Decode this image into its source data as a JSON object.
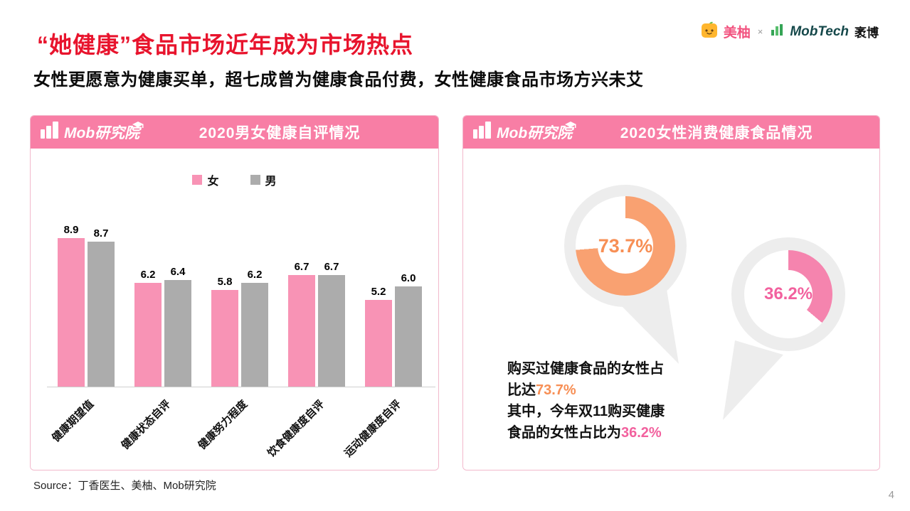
{
  "page": {
    "title": "“她健康”食品市场近年成为市场热点",
    "subtitle": "女性更愿意为健康买单，超七成曾为健康食品付费，女性健康食品市场方兴未艾",
    "source": "Source：丁香医生、美柚、Mob研究院",
    "page_number": "4"
  },
  "brand_bar": {
    "meiyou_label": "美柚",
    "separator": "×",
    "mobtech_label": "MobTech",
    "mobtech_suffix": "袤博"
  },
  "left_panel": {
    "logo_text": "Mob研究院",
    "header_title": "2020男女健康自评情况"
  },
  "right_panel": {
    "logo_text": "Mob研究院",
    "header_title": "2020女性消费健康食品情况",
    "caption": {
      "line1": "购买过健康食品的女性占",
      "line2_prefix": "比达",
      "line2_pct": "73.7%",
      "line3": "其中，今年双11购买健康",
      "line4_prefix": "食品的女性占比为",
      "line4_pct": "36.2%"
    }
  },
  "colors": {
    "accent_red": "#E8142D",
    "header_pink": "#F87EA5",
    "female_pink": "#F893B5",
    "male_gray": "#ACACAC",
    "donut_orange": "#F9A171",
    "donut_pink": "#F584AE"
  },
  "chart_data": [
    {
      "type": "bar",
      "title": "2020男女健康自评情况",
      "categories": [
        "健康期望值",
        "健康状态自评",
        "健康努力程度",
        "饮食健康度自评",
        "运动健康度自评"
      ],
      "series": [
        {
          "name": "女",
          "color": "#F893B5",
          "values": [
            8.9,
            6.2,
            5.8,
            6.7,
            5.2
          ]
        },
        {
          "name": "男",
          "color": "#ACACAC",
          "values": [
            8.7,
            6.4,
            6.2,
            6.7,
            6.0
          ]
        }
      ],
      "ylim": [
        0,
        10
      ],
      "value_labels": true,
      "legend_position": "top",
      "grid": false
    },
    {
      "type": "pie",
      "style": "donut",
      "title": "2020女性消费健康食品情况",
      "slices": [
        {
          "label": "购买过健康食品的女性占比",
          "value": 73.7,
          "color": "#F9A171"
        },
        {
          "label": "今年双11购买健康食品的女性占比",
          "value": 36.2,
          "color": "#F584AE"
        }
      ]
    }
  ]
}
